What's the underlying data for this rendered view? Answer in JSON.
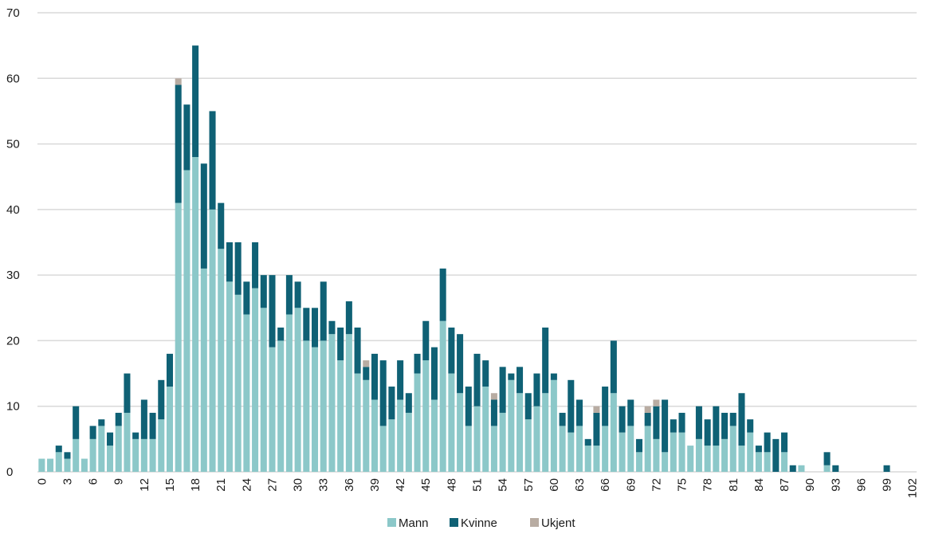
{
  "chart_data": {
    "type": "bar",
    "stacked": true,
    "x": [
      0,
      1,
      2,
      3,
      4,
      5,
      6,
      7,
      8,
      9,
      10,
      11,
      12,
      13,
      14,
      15,
      16,
      17,
      18,
      19,
      20,
      21,
      22,
      23,
      24,
      25,
      26,
      27,
      28,
      29,
      30,
      31,
      32,
      33,
      34,
      35,
      36,
      37,
      38,
      39,
      40,
      41,
      42,
      43,
      44,
      45,
      46,
      47,
      48,
      49,
      50,
      51,
      52,
      53,
      54,
      55,
      56,
      57,
      58,
      59,
      60,
      61,
      62,
      63,
      64,
      65,
      66,
      67,
      68,
      69,
      70,
      71,
      72,
      73,
      74,
      75,
      76,
      77,
      78,
      79,
      80,
      81,
      82,
      83,
      84,
      85,
      86,
      87,
      88,
      89,
      90,
      91,
      92,
      93,
      94,
      95,
      96,
      97,
      98,
      99,
      100,
      101,
      102
    ],
    "x_tick_labels": [
      "0",
      "3",
      "6",
      "9",
      "12",
      "15",
      "18",
      "21",
      "24",
      "27",
      "30",
      "33",
      "36",
      "39",
      "42",
      "45",
      "48",
      "51",
      "54",
      "57",
      "60",
      "63",
      "66",
      "69",
      "72",
      "75",
      "78",
      "81",
      "84",
      "87",
      "90",
      "93",
      "96",
      "99",
      "102"
    ],
    "y_tick_labels": [
      "0",
      "10",
      "20",
      "30",
      "40",
      "50",
      "60",
      "70"
    ],
    "ylim": [
      0,
      70
    ],
    "grid": "horizontal",
    "legend_position": "bottom",
    "series": [
      {
        "name": "Mann",
        "color": "#8cc8c9",
        "values": [
          2,
          2,
          3,
          2,
          5,
          2,
          5,
          7,
          4,
          7,
          9,
          5,
          5,
          5,
          8,
          13,
          41,
          46,
          48,
          31,
          40,
          34,
          29,
          27,
          24,
          28,
          25,
          19,
          20,
          24,
          25,
          20,
          19,
          20,
          21,
          17,
          21,
          15,
          14,
          11,
          7,
          8,
          11,
          9,
          15,
          17,
          11,
          23,
          15,
          12,
          7,
          10,
          13,
          7,
          9,
          14,
          12,
          8,
          10,
          12,
          14,
          7,
          6,
          7,
          4,
          4,
          7,
          12,
          6,
          7,
          3,
          7,
          5,
          3,
          6,
          6,
          4,
          5,
          4,
          4,
          5,
          7,
          4,
          6,
          3,
          3,
          0,
          3,
          0,
          1,
          0,
          0,
          1,
          0,
          0,
          0,
          0,
          0,
          0,
          0,
          0,
          0,
          0
        ]
      },
      {
        "name": "Kvinne",
        "color": "#0f6175",
        "values": [
          0,
          0,
          1,
          1,
          5,
          0,
          2,
          1,
          2,
          2,
          6,
          1,
          6,
          4,
          6,
          5,
          18,
          10,
          17,
          16,
          15,
          7,
          6,
          8,
          5,
          7,
          5,
          11,
          2,
          6,
          4,
          5,
          6,
          9,
          2,
          5,
          5,
          7,
          2,
          7,
          10,
          5,
          6,
          3,
          3,
          6,
          8,
          8,
          7,
          9,
          6,
          8,
          4,
          4,
          7,
          1,
          4,
          4,
          5,
          10,
          1,
          2,
          8,
          4,
          1,
          5,
          6,
          8,
          4,
          4,
          2,
          2,
          5,
          8,
          2,
          3,
          0,
          5,
          4,
          6,
          4,
          2,
          8,
          2,
          1,
          3,
          5,
          3,
          1,
          0,
          0,
          0,
          2,
          1,
          0,
          0,
          0,
          0,
          0,
          1,
          0,
          0,
          0
        ]
      },
      {
        "name": "Ukjent",
        "color": "#b8aca2",
        "values": [
          0,
          0,
          0,
          0,
          0,
          0,
          0,
          0,
          0,
          0,
          0,
          0,
          0,
          0,
          0,
          0,
          1,
          0,
          0,
          0,
          0,
          0,
          0,
          0,
          0,
          0,
          0,
          0,
          0,
          0,
          0,
          0,
          0,
          0,
          0,
          0,
          0,
          0,
          1,
          0,
          0,
          0,
          0,
          0,
          0,
          0,
          0,
          0,
          0,
          0,
          0,
          0,
          0,
          1,
          0,
          0,
          0,
          0,
          0,
          0,
          0,
          0,
          0,
          0,
          0,
          1,
          0,
          0,
          0,
          0,
          0,
          1,
          1,
          0,
          0,
          0,
          0,
          0,
          0,
          0,
          0,
          0,
          0,
          0,
          0,
          0,
          0,
          0,
          0,
          0,
          0,
          0,
          0,
          0,
          0,
          0,
          0,
          0,
          0,
          0,
          0,
          0,
          0
        ]
      }
    ]
  }
}
